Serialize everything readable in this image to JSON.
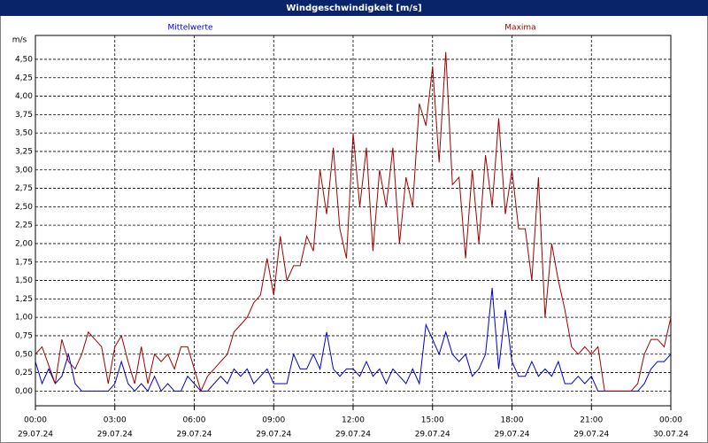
{
  "chart_data": {
    "type": "line",
    "title": "Windgeschwindigkeit [m/s]",
    "y_unit": "m/s",
    "x": [
      0,
      0.25,
      0.5,
      0.75,
      1,
      1.25,
      1.5,
      1.75,
      2,
      2.25,
      2.5,
      2.75,
      3,
      3.25,
      3.5,
      3.75,
      4,
      4.25,
      4.5,
      4.75,
      5,
      5.25,
      5.5,
      5.75,
      6,
      6.25,
      6.5,
      6.75,
      7,
      7.25,
      7.5,
      7.75,
      8,
      8.25,
      8.5,
      8.75,
      9,
      9.25,
      9.5,
      9.75,
      10,
      10.25,
      10.5,
      10.75,
      11,
      11.25,
      11.5,
      11.75,
      12,
      12.25,
      12.5,
      12.75,
      13,
      13.25,
      13.5,
      13.75,
      14,
      14.25,
      14.5,
      14.75,
      15,
      15.25,
      15.5,
      15.75,
      16,
      16.25,
      16.5,
      16.75,
      17,
      17.25,
      17.5,
      17.75,
      18,
      18.25,
      18.5,
      18.75,
      19,
      19.25,
      19.5,
      19.75,
      20,
      20.25,
      20.5,
      20.75,
      21,
      21.25,
      21.5,
      21.75,
      22,
      22.25,
      22.5,
      22.75,
      23,
      23.25,
      23.5,
      23.75,
      24
    ],
    "series": [
      {
        "name": "Mittelwerte",
        "color": "#0000cc",
        "values": [
          0.4,
          0.1,
          0.3,
          0.1,
          0.2,
          0.5,
          0.1,
          0.0,
          0,
          0,
          0,
          0,
          0.1,
          0.4,
          0.1,
          0,
          0.1,
          0,
          0.2,
          0,
          0.1,
          0,
          0,
          0.2,
          0.1,
          0,
          0,
          0.1,
          0.2,
          0.1,
          0.3,
          0.2,
          0.3,
          0.1,
          0.2,
          0.3,
          0.1,
          0.1,
          0.1,
          0.5,
          0.3,
          0.3,
          0.5,
          0.3,
          0.8,
          0.3,
          0.2,
          0.3,
          0.3,
          0.2,
          0.4,
          0.2,
          0.3,
          0.1,
          0.3,
          0.2,
          0.1,
          0.3,
          0.1,
          0.9,
          0.7,
          0.5,
          0.8,
          0.5,
          0.4,
          0.5,
          0.2,
          0.3,
          0.5,
          1.4,
          0.3,
          1.1,
          0.4,
          0.2,
          0.2,
          0.4,
          0.2,
          0.3,
          0.2,
          0.4,
          0.1,
          0.1,
          0.2,
          0.1,
          0.2,
          0.0,
          0,
          0,
          0,
          0,
          0,
          0,
          0.1,
          0.3,
          0.4,
          0.4,
          0.5
        ]
      },
      {
        "name": "Maxima",
        "color": "#a00000",
        "values": [
          0.5,
          0.6,
          0.35,
          0.1,
          0.7,
          0.4,
          0.3,
          0.5,
          0.8,
          0.7,
          0.6,
          0.1,
          0.6,
          0.75,
          0.4,
          0.1,
          0.6,
          0.1,
          0.5,
          0.4,
          0.5,
          0.3,
          0.6,
          0.6,
          0.3,
          0.0,
          0.2,
          0.3,
          0.4,
          0.5,
          0.8,
          0.9,
          1.0,
          1.2,
          1.3,
          1.8,
          1.3,
          2.1,
          1.5,
          1.7,
          1.7,
          2.1,
          1.9,
          3.0,
          2.4,
          3.3,
          2.2,
          1.8,
          3.5,
          2.5,
          3.3,
          1.9,
          3.0,
          2.5,
          3.3,
          2.0,
          2.9,
          2.5,
          3.9,
          3.6,
          4.4,
          3.1,
          4.6,
          2.8,
          2.9,
          1.8,
          3.0,
          2.0,
          3.2,
          2.5,
          3.7,
          2.4,
          3.0,
          2.2,
          2.2,
          1.5,
          2.9,
          1.0,
          2.0,
          1.5,
          1.1,
          0.6,
          0.5,
          0.6,
          0.5,
          0.6,
          0.0,
          0.0,
          0,
          0,
          0,
          0.1,
          0.5,
          0.7,
          0.7,
          0.6,
          1.0
        ]
      }
    ],
    "xlim": [
      0,
      24
    ],
    "xticks": [
      {
        "value": 0,
        "label": "00:00"
      },
      {
        "value": 3,
        "label": "03:00"
      },
      {
        "value": 6,
        "label": "06:00"
      },
      {
        "value": 9,
        "label": "09:00"
      },
      {
        "value": 12,
        "label": "12:00"
      },
      {
        "value": 15,
        "label": "15:00"
      },
      {
        "value": 18,
        "label": "18:00"
      },
      {
        "value": 21,
        "label": "21:00"
      },
      {
        "value": 24,
        "label": "00:00"
      }
    ],
    "xtick_dates": [
      "29.07.24",
      "29.07.24",
      "29.07.24",
      "29.07.24",
      "29.07.24",
      "29.07.24",
      "29.07.24",
      "29.07.24",
      "30.07.24"
    ],
    "ylim": [
      -0.2,
      4.8
    ],
    "yticks": [
      {
        "value": 0,
        "label": "0,00"
      },
      {
        "value": 0.25,
        "label": "0,25"
      },
      {
        "value": 0.5,
        "label": "0,50"
      },
      {
        "value": 0.75,
        "label": "0,75"
      },
      {
        "value": 1,
        "label": "1,00"
      },
      {
        "value": 1.25,
        "label": "1,25"
      },
      {
        "value": 1.5,
        "label": "1,50"
      },
      {
        "value": 1.75,
        "label": "1,75"
      },
      {
        "value": 2,
        "label": "2,00"
      },
      {
        "value": 2.25,
        "label": "2,25"
      },
      {
        "value": 2.5,
        "label": "2,50"
      },
      {
        "value": 2.75,
        "label": "2,75"
      },
      {
        "value": 3,
        "label": "3,00"
      },
      {
        "value": 3.25,
        "label": "3,25"
      },
      {
        "value": 3.5,
        "label": "3,50"
      },
      {
        "value": 3.75,
        "label": "3,75"
      },
      {
        "value": 4,
        "label": "4,00"
      },
      {
        "value": 4.25,
        "label": "4,25"
      },
      {
        "value": 4.5,
        "label": "4,50"
      }
    ],
    "grid": true
  }
}
